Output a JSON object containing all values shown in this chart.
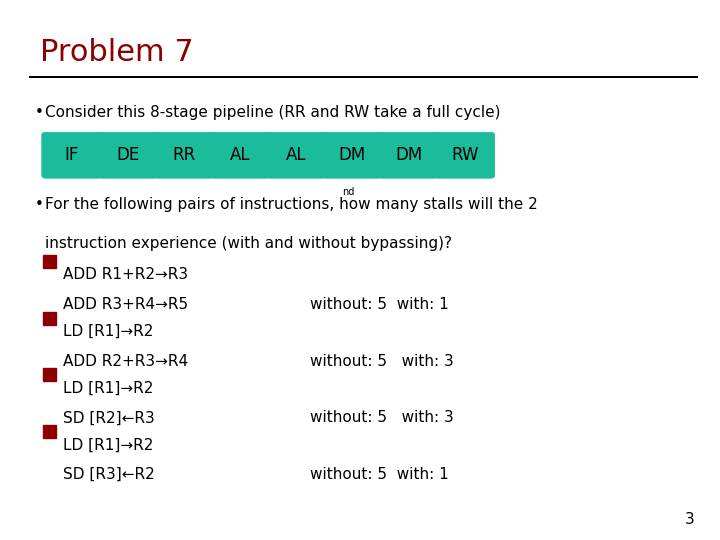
{
  "title": "Problem 7",
  "title_color": "#8B0000",
  "bg_color": "#FFFFFF",
  "bar_color": "#1ABC9C",
  "bar_labels": [
    "IF",
    "DE",
    "RR",
    "AL",
    "AL",
    "DM",
    "DM",
    "RW"
  ],
  "bullet1": " Consider this 8-stage pipeline (RR and RW take a full cycle)",
  "bullet2_line1": " For the following pairs of instructions, how many stalls will the 2",
  "bullet2_sup": "nd",
  "bullet2_line2": "  instruction experience (with and without bypassing)?",
  "items": [
    {
      "line1": "ADD R1+R2→R3",
      "line2": " ADD R3+R4→R5",
      "result": "without: 5  with: 1"
    },
    {
      "line1": "LD [R1]→R2",
      "line2": " ADD R2+R3→R4",
      "result": "without: 5   with: 3"
    },
    {
      "line1": "LD [R1]→R2",
      "line2": " SD [R2]←R3",
      "result": "without: 5   with: 3"
    },
    {
      "line1": "LD [R1]→R2",
      "line2": " SD [R3]←R2",
      "result": "without: 5  with: 1"
    }
  ],
  "bullet_color": "#8B0000",
  "text_color": "#000000",
  "page_number": "3",
  "title_fontsize": 22,
  "body_fontsize": 11,
  "small_fontsize": 7
}
